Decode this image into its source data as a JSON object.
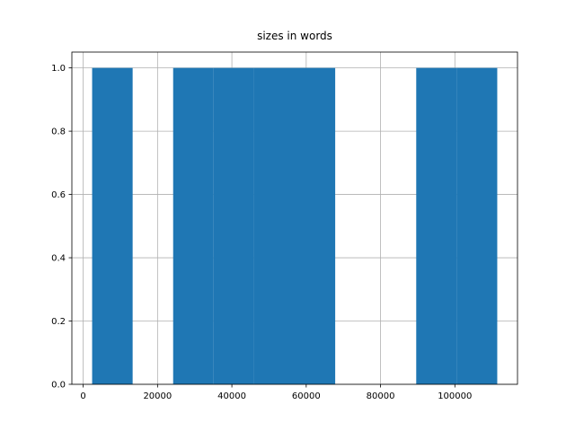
{
  "chart_data": {
    "type": "histogram",
    "title": "sizes in words",
    "bins": [
      2400,
      13300,
      24200,
      35100,
      46000,
      56900,
      67800,
      78700,
      89600,
      100500,
      111400
    ],
    "counts": [
      1,
      0,
      1,
      1,
      1,
      1,
      0,
      0,
      1,
      1
    ],
    "color": "#1f77b4",
    "xlim": [
      -3050,
      116850
    ],
    "xticks": [
      0,
      20000,
      40000,
      60000,
      80000,
      100000
    ],
    "ylim": [
      0,
      1.05
    ],
    "yticks": [
      {
        "value": 0,
        "label": "0.0"
      },
      {
        "value": 0.2,
        "label": "0.2"
      },
      {
        "value": 0.4,
        "label": "0.4"
      },
      {
        "value": 0.6,
        "label": "0.6"
      },
      {
        "value": 0.8,
        "label": "0.8"
      },
      {
        "value": 1,
        "label": "1.0"
      }
    ],
    "grid": true
  }
}
